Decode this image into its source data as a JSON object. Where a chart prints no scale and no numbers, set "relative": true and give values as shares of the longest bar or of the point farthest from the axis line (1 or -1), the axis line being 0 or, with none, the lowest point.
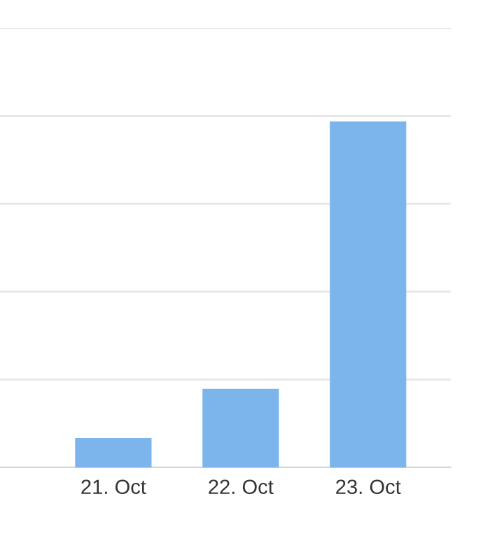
{
  "chart_data": {
    "type": "bar",
    "relative": true,
    "categories": [
      null,
      "21. Oct",
      "22. Oct",
      "23. Oct"
    ],
    "values": [
      0,
      0.085,
      0.227,
      1
    ],
    "color": "#7cb5ec",
    "grid": "y",
    "legend": false
  }
}
